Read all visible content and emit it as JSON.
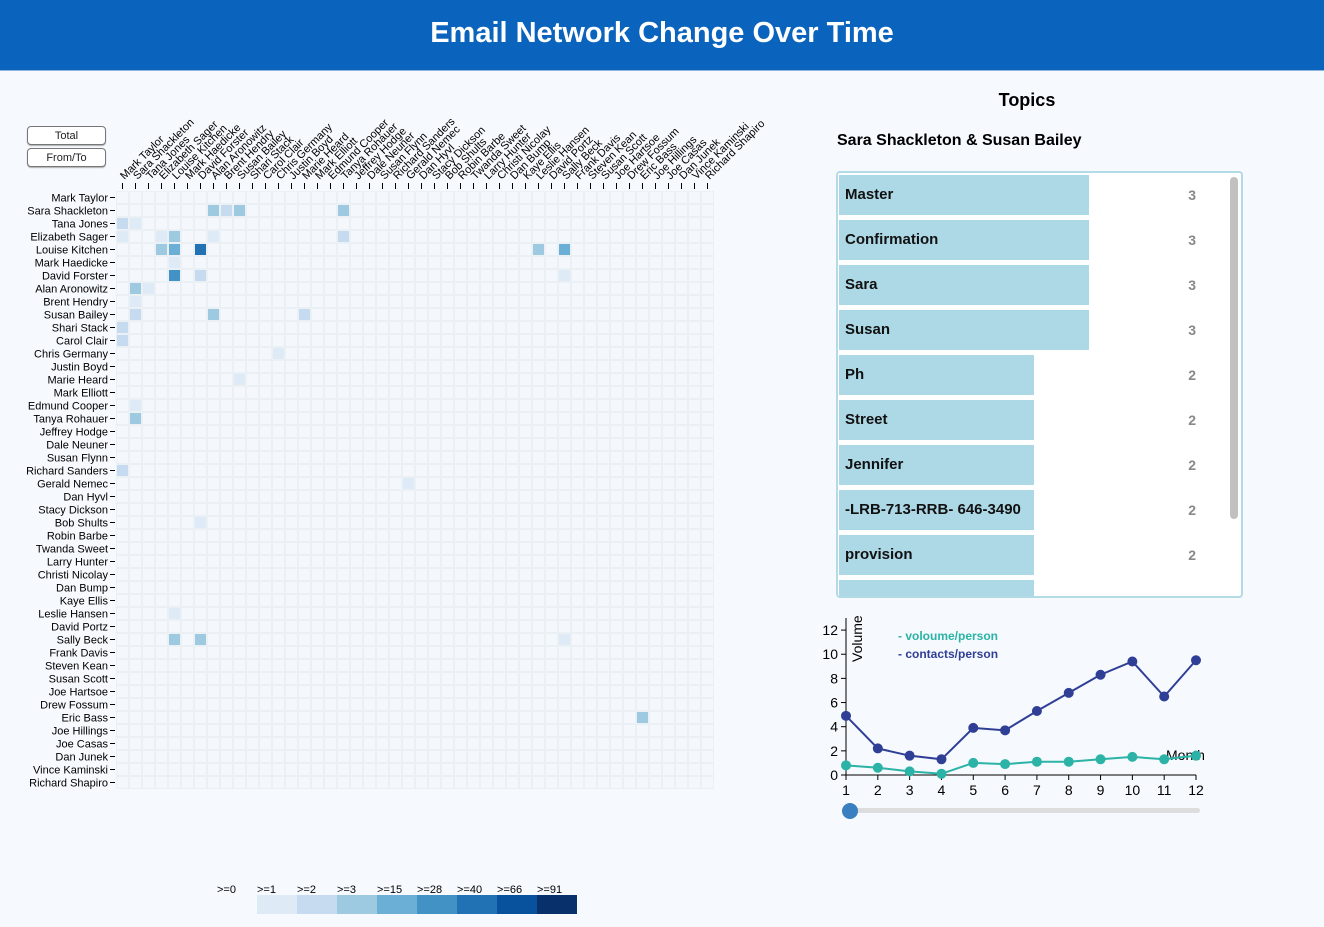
{
  "header": {
    "title": "Email Network Change Over Time"
  },
  "controls": {
    "total_label": "Total",
    "fromto_label": "From/To"
  },
  "people": [
    "Mark Taylor",
    "Sara Shackleton",
    "Tana Jones",
    "Elizabeth Sager",
    "Louise Kitchen",
    "Mark Haedicke",
    "David Forster",
    "Alan Aronowitz",
    "Brent Hendry",
    "Susan Bailey",
    "Shari Stack",
    "Carol Clair",
    "Chris Germany",
    "Justin Boyd",
    "Marie Heard",
    "Mark Elliott",
    "Edmund Cooper",
    "Tanya Rohauer",
    "Jeffrey Hodge",
    "Dale Neuner",
    "Susan Flynn",
    "Richard Sanders",
    "Gerald Nemec",
    "Dan Hyvl",
    "Stacy Dickson",
    "Bob Shults",
    "Robin Barbe",
    "Twanda Sweet",
    "Larry Hunter",
    "Christi Nicolay",
    "Dan Bump",
    "Kaye Ellis",
    "Leslie Hansen",
    "David Portz",
    "Sally Beck",
    "Frank Davis",
    "Steven Kean",
    "Susan Scott",
    "Joe Hartsoe",
    "Drew Fossum",
    "Eric Bass",
    "Joe Hillings",
    "Joe Casas",
    "Dan Junek",
    "Vince Kaminski",
    "Richard Shapiro"
  ],
  "matrix_cells": [
    {
      "row": 1,
      "col": 7,
      "level": 3
    },
    {
      "row": 1,
      "col": 8,
      "level": 2
    },
    {
      "row": 1,
      "col": 9,
      "level": 3
    },
    {
      "row": 1,
      "col": 17,
      "level": 3
    },
    {
      "row": 2,
      "col": 0,
      "level": 2
    },
    {
      "row": 2,
      "col": 1,
      "level": 1
    },
    {
      "row": 3,
      "col": 0,
      "level": 1
    },
    {
      "row": 3,
      "col": 3,
      "level": 1
    },
    {
      "row": 3,
      "col": 4,
      "level": 3
    },
    {
      "row": 3,
      "col": 7,
      "level": 1
    },
    {
      "row": 3,
      "col": 17,
      "level": 2
    },
    {
      "row": 4,
      "col": 3,
      "level": 3
    },
    {
      "row": 4,
      "col": 4,
      "level": 4
    },
    {
      "row": 4,
      "col": 6,
      "level": 6
    },
    {
      "row": 4,
      "col": 32,
      "level": 3
    },
    {
      "row": 4,
      "col": 34,
      "level": 4
    },
    {
      "row": 5,
      "col": 4,
      "level": 1
    },
    {
      "row": 6,
      "col": 4,
      "level": 5
    },
    {
      "row": 6,
      "col": 6,
      "level": 2
    },
    {
      "row": 6,
      "col": 34,
      "level": 1
    },
    {
      "row": 7,
      "col": 1,
      "level": 3
    },
    {
      "row": 7,
      "col": 2,
      "level": 1
    },
    {
      "row": 8,
      "col": 1,
      "level": 1
    },
    {
      "row": 9,
      "col": 1,
      "level": 2
    },
    {
      "row": 9,
      "col": 7,
      "level": 3
    },
    {
      "row": 9,
      "col": 14,
      "level": 2
    },
    {
      "row": 10,
      "col": 0,
      "level": 2
    },
    {
      "row": 11,
      "col": 0,
      "level": 2
    },
    {
      "row": 12,
      "col": 12,
      "level": 1
    },
    {
      "row": 14,
      "col": 9,
      "level": 1
    },
    {
      "row": 16,
      "col": 1,
      "level": 1
    },
    {
      "row": 17,
      "col": 1,
      "level": 3
    },
    {
      "row": 21,
      "col": 0,
      "level": 2
    },
    {
      "row": 22,
      "col": 22,
      "level": 1
    },
    {
      "row": 25,
      "col": 6,
      "level": 1
    },
    {
      "row": 32,
      "col": 4,
      "level": 1
    },
    {
      "row": 34,
      "col": 4,
      "level": 3
    },
    {
      "row": 34,
      "col": 6,
      "level": 3
    },
    {
      "row": 34,
      "col": 34,
      "level": 1
    },
    {
      "row": 40,
      "col": 40,
      "level": 3
    }
  ],
  "legend": {
    "labels": [
      ">=0",
      ">=1",
      ">=2",
      ">=3",
      ">=15",
      ">=28",
      ">=40",
      ">=66",
      ">=91"
    ],
    "colors": [
      "#f6f9fd",
      "#deebf7",
      "#c6dbef",
      "#9ecae1",
      "#6baed6",
      "#4292c6",
      "#2171b5",
      "#08519c",
      "#08306b"
    ]
  },
  "topics": {
    "title": "Topics",
    "pair": "Sara Shackleton & Susan Bailey",
    "items": [
      {
        "label": "Master",
        "count": 3
      },
      {
        "label": "Confirmation",
        "count": 3
      },
      {
        "label": "Sara",
        "count": 3
      },
      {
        "label": "Susan",
        "count": 3
      },
      {
        "label": "Ph",
        "count": 2
      },
      {
        "label": "Street",
        "count": 2
      },
      {
        "label": "Jennifer",
        "count": 2
      },
      {
        "label": "-LRB-713-RRB- 646-3490",
        "count": 2
      },
      {
        "label": "provision",
        "count": 2
      }
    ],
    "max_count": 3
  },
  "chart_data": {
    "type": "line",
    "x": [
      1,
      2,
      3,
      4,
      5,
      6,
      7,
      8,
      9,
      10,
      11,
      12
    ],
    "series": [
      {
        "name": "- voloume/person",
        "color": "#2ab3a6",
        "values": [
          0.8,
          0.6,
          0.3,
          0.1,
          1.0,
          0.9,
          1.1,
          1.1,
          1.3,
          1.5,
          1.3,
          1.6
        ]
      },
      {
        "name": "- contacts/person",
        "color": "#303f96",
        "values": [
          4.9,
          2.2,
          1.6,
          1.3,
          3.9,
          3.7,
          5.3,
          6.8,
          8.3,
          9.4,
          6.5,
          9.5
        ]
      }
    ],
    "xlabel": "Month",
    "ylabel": "Volume",
    "yticks": [
      0,
      2,
      4,
      6,
      8,
      10,
      12
    ],
    "xlim": [
      1,
      12
    ],
    "ylim": [
      0,
      13
    ],
    "slider_value": 1
  }
}
